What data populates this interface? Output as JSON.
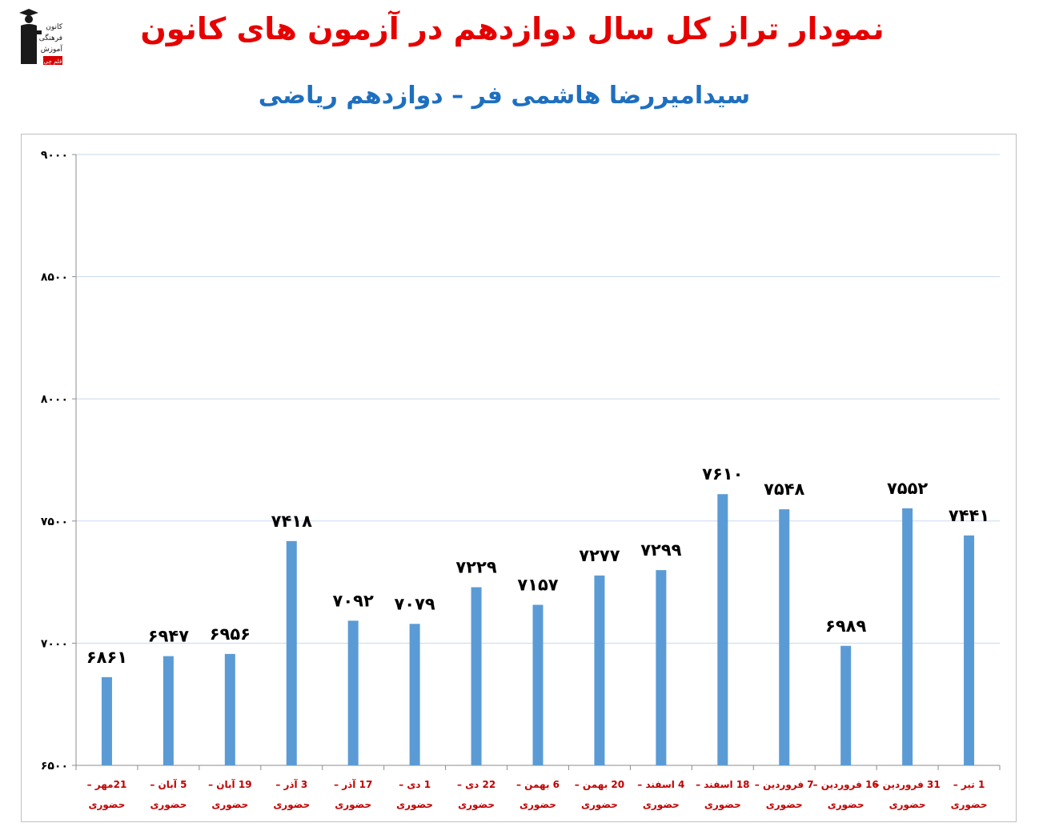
{
  "header": {
    "title": "نمودار تراز کل سال دوازدهم در آزمون های کانون",
    "subtitle": "سیدامیررضا هاشمی فر – دوازدهم ریاضی",
    "title_color": "#e60000",
    "subtitle_color": "#1f6fc0"
  },
  "logo": {
    "icon": "graduate-figure-icon",
    "lines": [
      "کانون",
      "فرهنگی",
      "آموزش"
    ],
    "badge": "قلم چی"
  },
  "chart_data": {
    "type": "bar",
    "categories": [
      [
        "21مهر –",
        "حضوری"
      ],
      [
        "5 آبان –",
        "حضوری"
      ],
      [
        "19 آبان –",
        "حضوری"
      ],
      [
        "3 آذر –",
        "حضوری"
      ],
      [
        "17 آذر –",
        "حضوری"
      ],
      [
        "1 دی –",
        "حضوری"
      ],
      [
        "22 دی –",
        "حضوری"
      ],
      [
        "6 بهمن –",
        "حضوری"
      ],
      [
        "20 بهمن –",
        "حضوری"
      ],
      [
        "4 اسفند –",
        "حضوری"
      ],
      [
        "18 اسفند –",
        "حضوری"
      ],
      [
        "7 فروردین –",
        "حضوری"
      ],
      [
        "16 فروردین –",
        "حضوری"
      ],
      [
        "31 فروردین –",
        "حضوری"
      ],
      [
        "1 تیر –",
        "حضوری"
      ]
    ],
    "values": [
      6861,
      6947,
      6956,
      7418,
      7092,
      7079,
      7229,
      7157,
      7277,
      7299,
      7610,
      7548,
      6989,
      7552,
      7441
    ],
    "data_labels": [
      "۶۸۶۱",
      "۶۹۴۷",
      "۶۹۵۶",
      "۷۴۱۸",
      "۷۰۹۲",
      "۷۰۷۹",
      "۷۲۲۹",
      "۷۱۵۷",
      "۷۲۷۷",
      "۷۲۹۹",
      "۷۶۱۰",
      "۷۵۴۸",
      "۶۹۸۹",
      "۷۵۵۲",
      "۷۴۴۱"
    ],
    "ylim": [
      6500,
      9000
    ],
    "yticks": [
      6500,
      7000,
      7500,
      8000,
      8500,
      9000
    ],
    "ytick_labels": [
      "۶۵۰۰",
      "۷۰۰۰",
      "۷۵۰۰",
      "۸۰۰۰",
      "۸۵۰۰",
      "۹۰۰۰"
    ],
    "grid": true,
    "bar_color": "#5b9bd5",
    "category_label_color": "#c00000",
    "grid_color": "#c6d9f1",
    "xlabel": "",
    "ylabel": ""
  }
}
